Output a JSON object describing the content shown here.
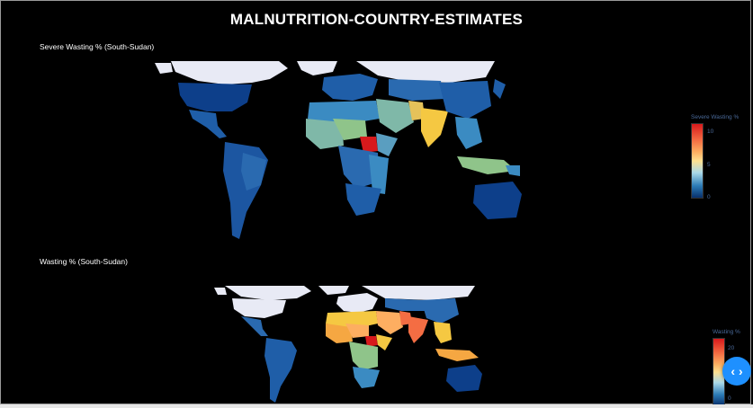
{
  "page_title": "MALNUTRITION-COUNTRY-ESTIMATES",
  "maps": [
    {
      "title": "Severe Wasting % (South-Sudan)",
      "legend_title": "Severe Wasting %",
      "ticks": [
        "10",
        "5",
        "0"
      ],
      "highlight_country": "South Sudan",
      "highlight_color": "#d7191c"
    },
    {
      "title": "Wasting % (South-Sudan)",
      "legend_title": "Wasting %",
      "ticks": [
        "20",
        "10",
        "0"
      ],
      "highlight_country": "South Sudan",
      "highlight_color": "#d7191c"
    }
  ],
  "toggle_label": "‹ ›",
  "colors": {
    "background": "#000000",
    "no_data": "#e8eaf5",
    "low": "#0d3f8a",
    "mid": "#3b8bc2",
    "high_mid": "#f5c842",
    "high": "#d7191c"
  }
}
